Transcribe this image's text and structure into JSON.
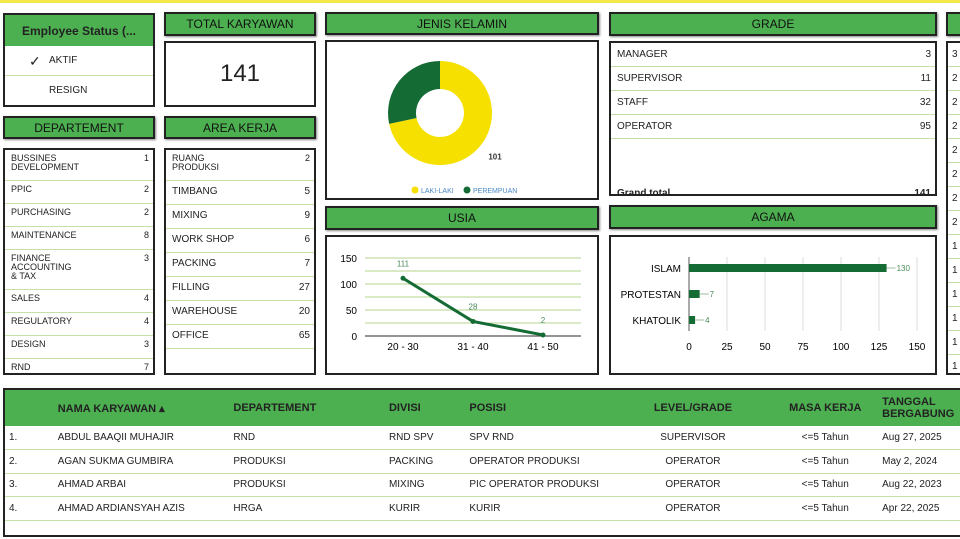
{
  "employee_status": {
    "title": "Employee Status (...",
    "options": [
      {
        "label": "AKTIF",
        "checked": true
      },
      {
        "label": "RESIGN",
        "checked": false
      }
    ]
  },
  "total": {
    "title": "TOTAL KARYAWAN",
    "value": "141"
  },
  "departement": {
    "title": "DEPARTEMENT",
    "items": [
      {
        "label": "BUSSINES\nDEVELOPMENT",
        "value": "1"
      },
      {
        "label": "PPIC",
        "value": "2"
      },
      {
        "label": "PURCHASING",
        "value": "2"
      },
      {
        "label": "MAINTENANCE",
        "value": "8"
      },
      {
        "label": "FINANCE\nACCOUNTING\n& TAX",
        "value": "3"
      },
      {
        "label": "SALES",
        "value": "4"
      },
      {
        "label": "REGULATORY",
        "value": "4"
      },
      {
        "label": "DESIGN",
        "value": "3"
      },
      {
        "label": "RND",
        "value": "7"
      }
    ]
  },
  "area_kerja": {
    "title": "AREA KERJA",
    "items": [
      {
        "label": "RUANG\nPRODUKSI",
        "value": "2"
      },
      {
        "label": "TIMBANG",
        "value": "5"
      },
      {
        "label": "MIXING",
        "value": "9"
      },
      {
        "label": "WORK SHOP",
        "value": "6"
      },
      {
        "label": "PACKING",
        "value": "7"
      },
      {
        "label": "FILLING",
        "value": "27"
      },
      {
        "label": "WAREHOUSE",
        "value": "20"
      },
      {
        "label": "OFFICE",
        "value": "65"
      }
    ]
  },
  "grade": {
    "title": "GRADE",
    "items": [
      {
        "label": "MANAGER",
        "value": "3"
      },
      {
        "label": "SUPERVISOR",
        "value": "11"
      },
      {
        "label": "STAFF",
        "value": "32"
      },
      {
        "label": "OPERATOR",
        "value": "95"
      }
    ],
    "total_label": "Grand total",
    "total_value": "141"
  },
  "right_column": {
    "values": [
      "3",
      "2",
      "2",
      "2",
      "2",
      "2",
      "2",
      "2",
      "1",
      "1",
      "1",
      "1",
      "1",
      "1"
    ]
  },
  "colors": {
    "green_header": "#4caf50",
    "dark_green": "#146b34",
    "yellow": "#f5e000"
  },
  "chart_data": [
    {
      "title": "JENIS KELAMIN",
      "type": "pie",
      "categories": [
        "LAKI-LAKI",
        "PEREMPUAN"
      ],
      "values": [
        101,
        40
      ],
      "colors": [
        "#f5e000",
        "#146b34"
      ],
      "legend": "bottom",
      "donut": true
    },
    {
      "title": "USIA",
      "type": "line",
      "categories": [
        "20 - 30",
        "31 - 40",
        "41 - 50"
      ],
      "values": [
        111,
        28,
        2
      ],
      "ylim": [
        0,
        150
      ],
      "yticks": [
        "0",
        "50",
        "100",
        "150"
      ],
      "grid": true
    },
    {
      "title": "AGAMA",
      "type": "bar",
      "orientation": "horizontal",
      "categories": [
        "ISLAM",
        "PROTESTAN",
        "KHATOLIK"
      ],
      "values": [
        130,
        7,
        4
      ],
      "xlim": [
        0,
        150
      ],
      "xticks": [
        "0",
        "25",
        "50",
        "75",
        "100",
        "125",
        "150"
      ],
      "grid": true
    }
  ],
  "table": {
    "columns": [
      "",
      "NAMA KARYAWAN ▴",
      "DEPARTEMENT",
      "DIVISI",
      "POSISI",
      "LEVEL/GRADE",
      "MASA KERJA",
      "TANGGAL BERGABUNG"
    ],
    "rows": [
      [
        "1.",
        "ABDUL BAAQII MUHAJIR",
        "RND",
        "RND SPV",
        "SPV RND",
        "SUPERVISOR",
        "<=5 Tahun",
        "Aug 27, 2025"
      ],
      [
        "2.",
        "AGAN SUKMA GUMBIRA",
        "PRODUKSI",
        "PACKING",
        "OPERATOR PRODUKSI",
        "OPERATOR",
        "<=5 Tahun",
        "May 2, 2024"
      ],
      [
        "3.",
        "AHMAD ARBAI",
        "PRODUKSI",
        "MIXING",
        "PIC OPERATOR PRODUKSI",
        "OPERATOR",
        "<=5 Tahun",
        "Aug 22, 2023"
      ],
      [
        "4.",
        "AHMAD ARDIANSYAH AZIS",
        "HRGA",
        "KURIR",
        "KURIR",
        "OPERATOR",
        "<=5 Tahun",
        "Apr 22, 2025"
      ]
    ]
  }
}
